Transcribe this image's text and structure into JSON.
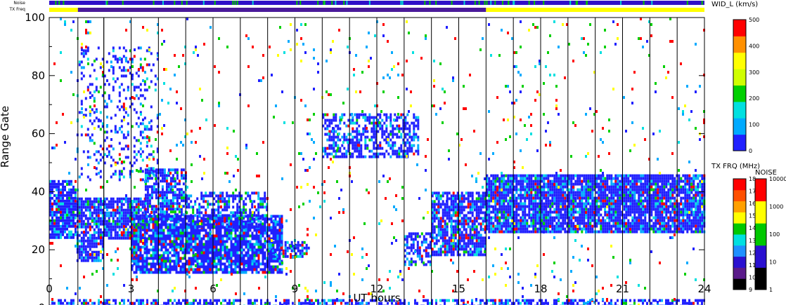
{
  "chart_data": {
    "type": "heatmap",
    "title": "",
    "xlabel": "UT hours",
    "ylabel": "Range Gate",
    "xlim": [
      0,
      24
    ],
    "ylim": [
      0,
      100
    ],
    "x_ticks": [
      0,
      3,
      6,
      9,
      12,
      15,
      18,
      21,
      24
    ],
    "y_ticks": [
      0,
      20,
      40,
      60,
      80,
      100
    ],
    "top_strips": [
      {
        "label": "Noise",
        "dominant_color": "#3010c8"
      },
      {
        "label": "TX Freq",
        "segments": [
          {
            "x0": 0,
            "x1": 1.05,
            "color": "#ffff00"
          },
          {
            "x0": 1.05,
            "x1": 16.0,
            "color": "#4a1a9a"
          },
          {
            "x0": 16.0,
            "x1": 24,
            "color": "#ffff00"
          }
        ]
      }
    ],
    "scan_boundaries_ut": [
      1.05,
      2.0,
      2.0,
      3.0,
      4.0,
      5.0,
      6.0,
      7.0,
      8.0,
      9.0,
      10.0,
      11.0,
      12.0,
      13.0,
      14.0,
      15.0,
      16.0,
      17.0,
      18.0,
      19.0,
      20.0,
      21.0,
      22.0,
      23.0
    ],
    "scatter_regions": [
      {
        "x0": 0.0,
        "x1": 1.0,
        "y0": 24,
        "y1": 44,
        "density": 0.85
      },
      {
        "x0": 1.0,
        "x1": 2.0,
        "y0": 16,
        "y1": 38,
        "density": 0.8
      },
      {
        "x0": 2.0,
        "x1": 3.5,
        "y0": 24,
        "y1": 38,
        "density": 0.85
      },
      {
        "x0": 3.5,
        "x1": 5.0,
        "y0": 30,
        "y1": 48,
        "density": 0.75
      },
      {
        "x0": 3.0,
        "x1": 8.5,
        "y0": 12,
        "y1": 32,
        "density": 0.85
      },
      {
        "x0": 5.0,
        "x1": 8.0,
        "y0": 28,
        "y1": 40,
        "density": 0.55
      },
      {
        "x0": 8.0,
        "x1": 9.5,
        "y0": 18,
        "y1": 23,
        "density": 0.6
      },
      {
        "x0": 10.0,
        "x1": 13.5,
        "y0": 52,
        "y1": 67,
        "density": 0.55
      },
      {
        "x0": 13.0,
        "x1": 14.0,
        "y0": 15,
        "y1": 26,
        "density": 0.6
      },
      {
        "x0": 14.0,
        "x1": 16.0,
        "y0": 18,
        "y1": 40,
        "density": 0.8
      },
      {
        "x0": 16.0,
        "x1": 24.0,
        "y0": 26,
        "y1": 46,
        "density": 0.9
      },
      {
        "x0": 0.0,
        "x1": 24.0,
        "y0": 0,
        "y1": 3,
        "density": 0.55
      },
      {
        "x0": 1.0,
        "x1": 4.0,
        "y0": 44,
        "y1": 90,
        "density": 0.18
      },
      {
        "x0": 0.0,
        "x1": 24.0,
        "y0": 0,
        "y1": 100,
        "density": 0.025
      }
    ],
    "colorbars": [
      {
        "name": "WID_L (km/s)",
        "ticks": [
          "0",
          "100",
          "200",
          "300",
          "400",
          "500"
        ],
        "colors": [
          "#2020ff",
          "#00aaff",
          "#00e0e0",
          "#00d000",
          "#d0ff00",
          "#ffff00",
          "#ff9000",
          "#ff0000"
        ]
      },
      {
        "name": "TX FRQ (MHz)",
        "ticks": [
          "9",
          "10",
          "11",
          "12",
          "13",
          "14",
          "15",
          "16",
          "17",
          "18"
        ],
        "colors": [
          "#000000",
          "#5a1a8a",
          "#2a10d0",
          "#1e90ff",
          "#00e0e0",
          "#00c800",
          "#ffff00",
          "#ffa000",
          "#ff5000",
          "#ff0000"
        ]
      },
      {
        "name": "NOISE",
        "ticks": [
          "1",
          "10",
          "100",
          "1000",
          "10000"
        ],
        "colors": [
          "#000000",
          "#2a10d0",
          "#00c800",
          "#ffff00",
          "#ff0000"
        ]
      }
    ]
  }
}
